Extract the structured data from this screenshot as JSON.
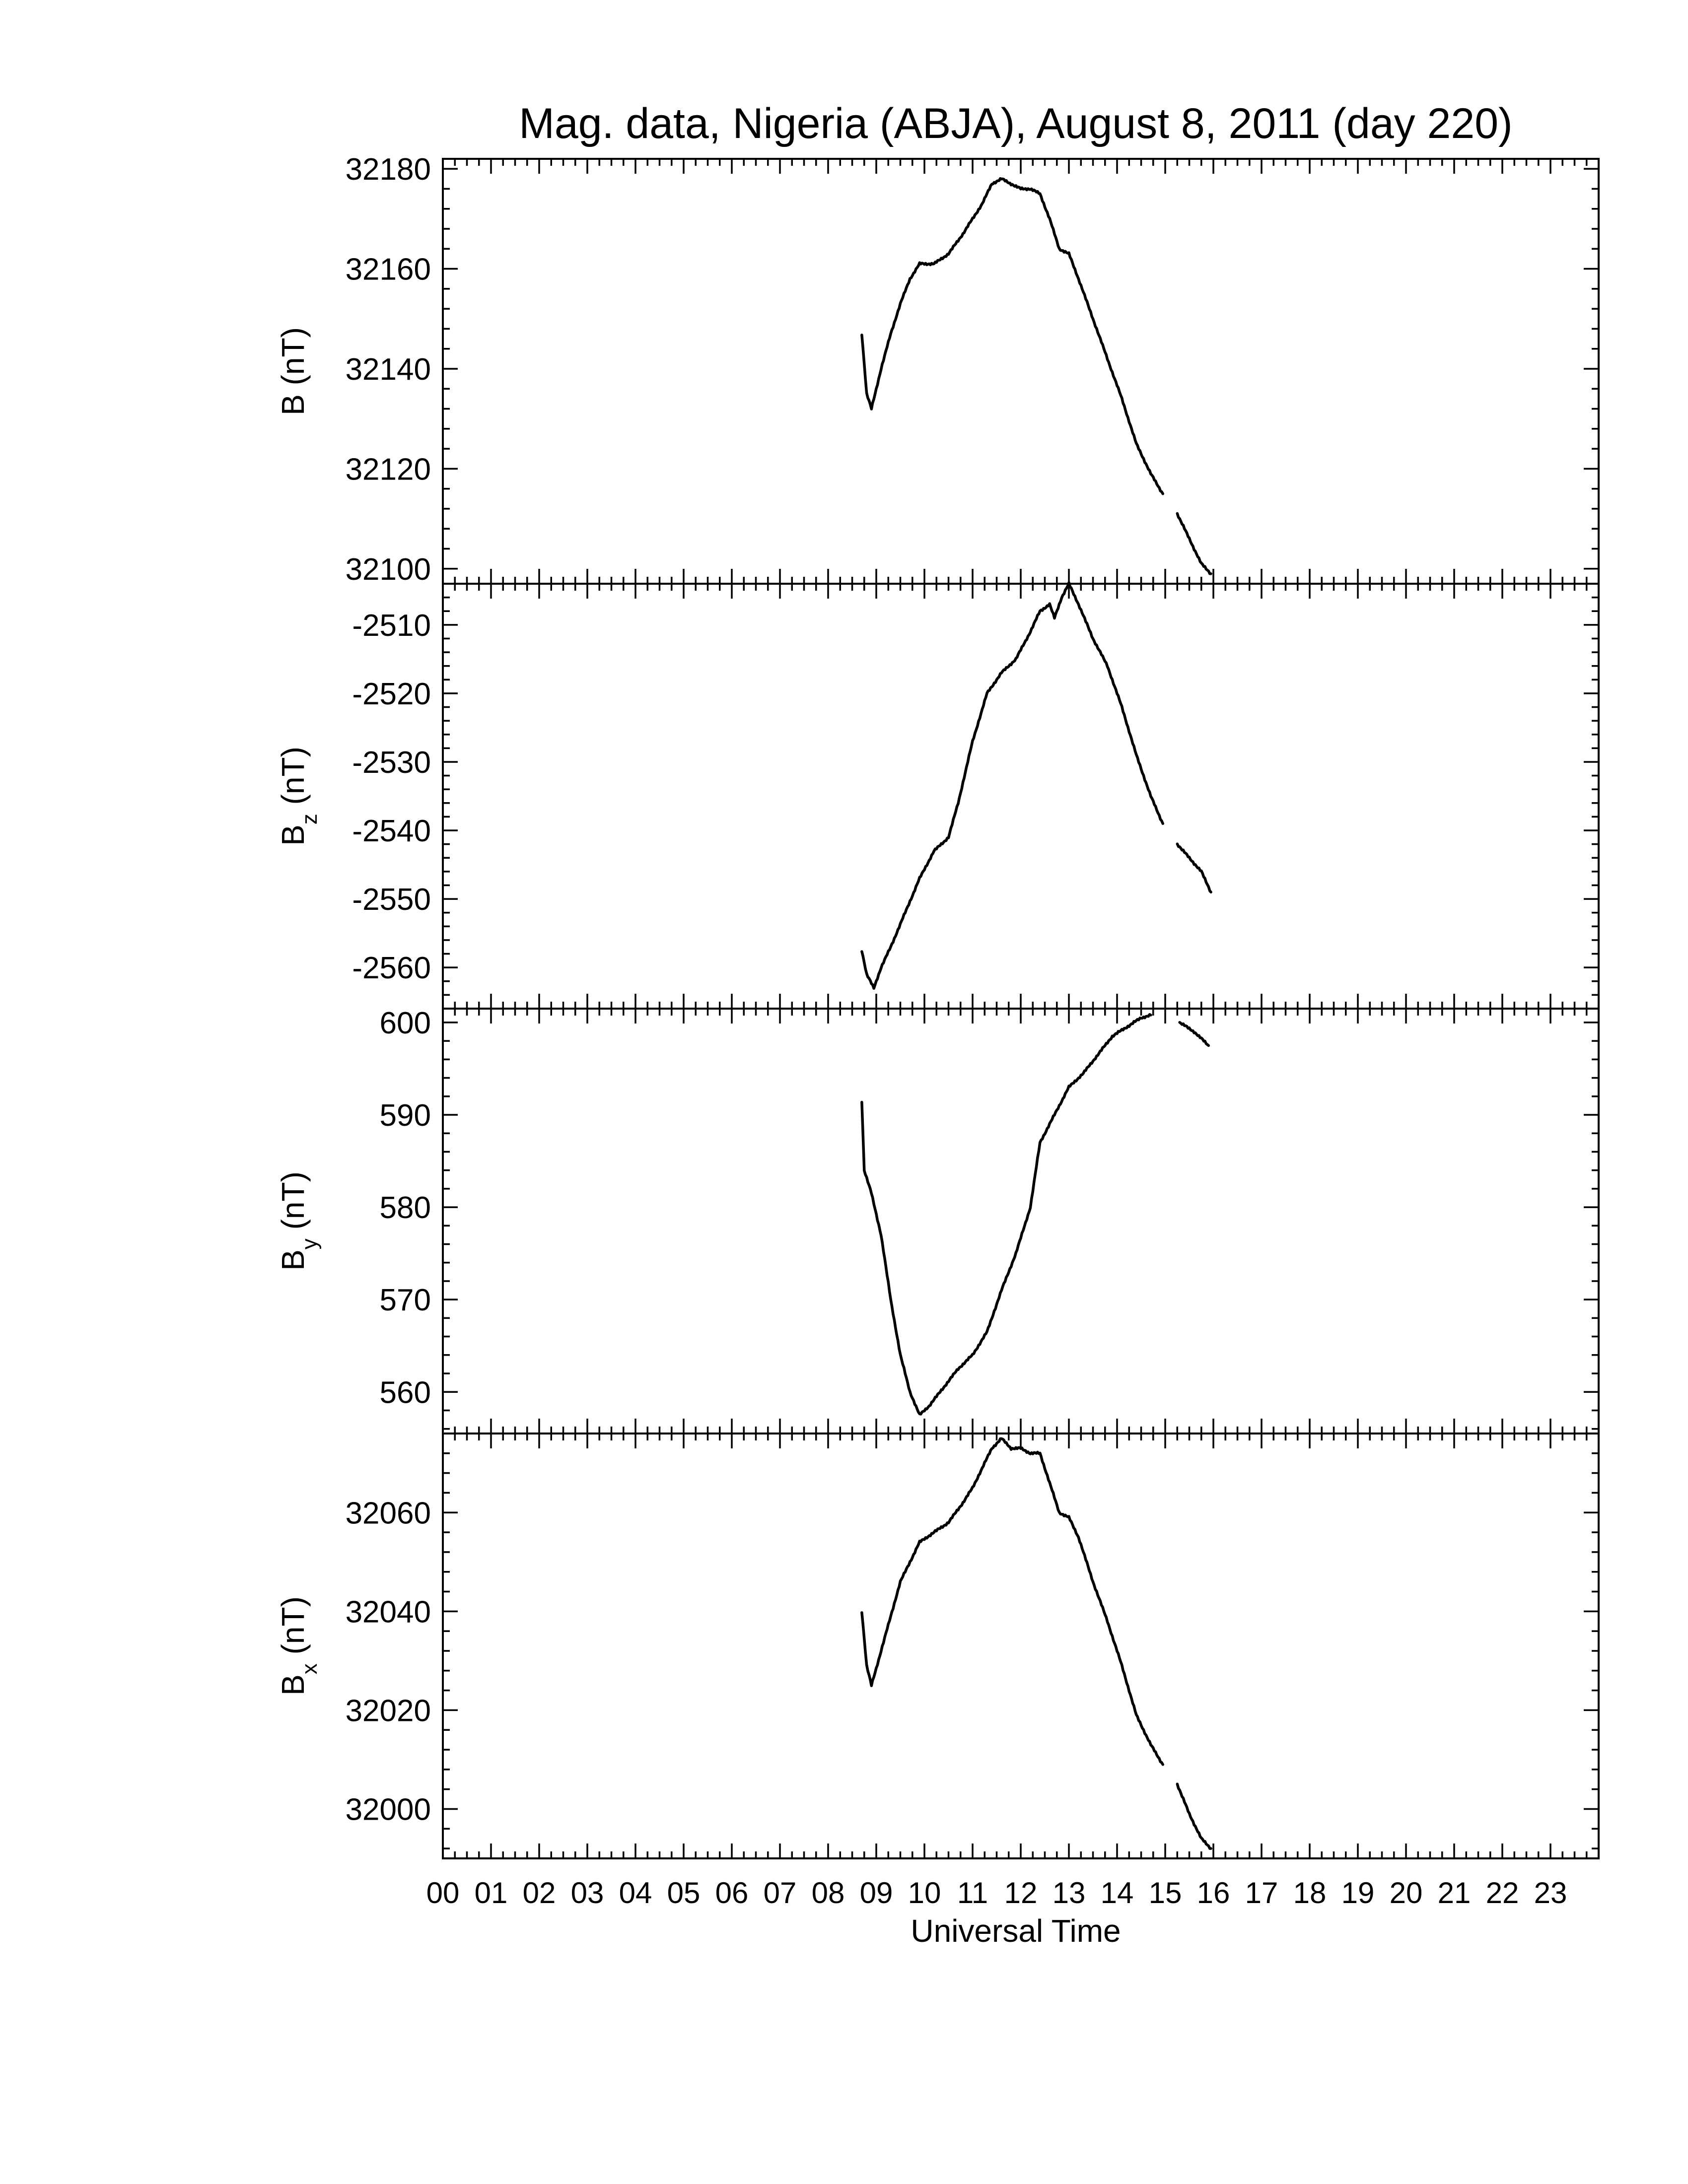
{
  "chart_data": {
    "type": "line",
    "title": "Mag. data, Nigeria (ABJA), August 8, 2011 (day 220)",
    "xlabel": "Universal Time",
    "xlim": [
      0,
      24
    ],
    "x_tick_labels": [
      "00",
      "01",
      "02",
      "03",
      "04",
      "05",
      "06",
      "07",
      "08",
      "09",
      "10",
      "11",
      "12",
      "13",
      "14",
      "15",
      "16",
      "17",
      "18",
      "19",
      "20",
      "21",
      "22",
      "23"
    ],
    "panels": [
      {
        "id": "B",
        "ylabel": "B",
        "ylabel_sub": "",
        "ylabel_unit": "(nT)",
        "ylim": [
          32097,
          32182
        ],
        "yticks": [
          32100,
          32120,
          32140,
          32160,
          32180
        ],
        "segments": [
          [
            [
              8.7,
              32147
            ],
            [
              8.8,
              32135
            ],
            [
              8.9,
              32132
            ],
            [
              9.1,
              32140
            ],
            [
              9.3,
              32147
            ],
            [
              9.5,
              32153
            ],
            [
              9.7,
              32158
            ],
            [
              9.9,
              32161
            ],
            [
              10.2,
              32161
            ],
            [
              10.5,
              32163
            ],
            [
              10.8,
              32167
            ],
            [
              11.0,
              32170
            ],
            [
              11.2,
              32173
            ],
            [
              11.4,
              32177
            ],
            [
              11.6,
              32178
            ],
            [
              11.8,
              32177
            ],
            [
              12.0,
              32176
            ],
            [
              12.2,
              32176
            ],
            [
              12.4,
              32175
            ],
            [
              12.6,
              32170
            ],
            [
              12.8,
              32164
            ],
            [
              13.0,
              32163
            ],
            [
              13.2,
              32158
            ],
            [
              13.5,
              32150
            ],
            [
              13.8,
              32142
            ],
            [
              14.1,
              32134
            ],
            [
              14.4,
              32125
            ],
            [
              14.7,
              32119
            ],
            [
              14.95,
              32115
            ]
          ],
          [
            [
              15.25,
              32111
            ],
            [
              15.5,
              32106
            ],
            [
              15.75,
              32101
            ],
            [
              15.95,
              32099
            ]
          ]
        ]
      },
      {
        "id": "Bz",
        "ylabel": "B",
        "ylabel_sub": "z",
        "ylabel_unit": "(nT)",
        "ylim": [
          -2566,
          -2504
        ],
        "yticks": [
          -2510,
          -2520,
          -2530,
          -2540,
          -2550,
          -2560
        ],
        "segments": [
          [
            [
              8.7,
              -2557.5
            ],
            [
              8.8,
              -2561
            ],
            [
              8.95,
              -2563
            ],
            [
              9.1,
              -2560
            ],
            [
              9.3,
              -2557
            ],
            [
              9.6,
              -2552
            ],
            [
              9.9,
              -2547
            ],
            [
              10.2,
              -2543
            ],
            [
              10.5,
              -2541
            ],
            [
              10.7,
              -2536
            ],
            [
              11.0,
              -2527
            ],
            [
              11.3,
              -2520
            ],
            [
              11.6,
              -2517
            ],
            [
              11.9,
              -2515
            ],
            [
              12.2,
              -2511
            ],
            [
              12.4,
              -2508
            ],
            [
              12.6,
              -2507
            ],
            [
              12.7,
              -2509
            ],
            [
              12.85,
              -2506
            ],
            [
              13.0,
              -2504
            ],
            [
              13.2,
              -2507
            ],
            [
              13.5,
              -2512
            ],
            [
              13.8,
              -2516
            ],
            [
              14.1,
              -2522
            ],
            [
              14.4,
              -2529
            ],
            [
              14.7,
              -2535
            ],
            [
              14.95,
              -2539
            ]
          ],
          [
            [
              15.25,
              -2542
            ],
            [
              15.5,
              -2544
            ],
            [
              15.75,
              -2546
            ],
            [
              15.95,
              -2549
            ]
          ]
        ]
      },
      {
        "id": "By",
        "ylabel": "B",
        "ylabel_sub": "y",
        "ylabel_unit": "(nT)",
        "ylim": [
          555.5,
          601.5
        ],
        "yticks": [
          560,
          570,
          580,
          590,
          600
        ],
        "segments": [
          [
            [
              8.7,
              591.5
            ],
            [
              8.75,
              584
            ],
            [
              8.9,
              581.5
            ],
            [
              9.1,
              577
            ],
            [
              9.3,
              570
            ],
            [
              9.5,
              564
            ],
            [
              9.7,
              560
            ],
            [
              9.9,
              557.5
            ],
            [
              10.1,
              558.5
            ],
            [
              10.4,
              560.5
            ],
            [
              10.7,
              562.5
            ],
            [
              11.0,
              564
            ],
            [
              11.3,
              566.5
            ],
            [
              11.6,
              571
            ],
            [
              11.9,
              575
            ],
            [
              12.2,
              580
            ],
            [
              12.4,
              587
            ],
            [
              12.6,
              589
            ],
            [
              12.8,
              591
            ],
            [
              13.0,
              593
            ],
            [
              13.3,
              594.5
            ],
            [
              13.6,
              596.5
            ],
            [
              13.9,
              598.5
            ],
            [
              14.2,
              599.5
            ],
            [
              14.5,
              600.5
            ],
            [
              14.7,
              600.8
            ]
          ],
          [
            [
              15.3,
              600
            ],
            [
              15.6,
              599
            ],
            [
              15.9,
              597.5
            ]
          ]
        ]
      },
      {
        "id": "Bx",
        "ylabel": "B",
        "ylabel_sub": "x",
        "ylabel_unit": "(nT)",
        "ylim": [
          31990,
          32076
        ],
        "yticks": [
          32000,
          32020,
          32040,
          32060
        ],
        "segments": [
          [
            [
              8.7,
              32040
            ],
            [
              8.8,
              32029
            ],
            [
              8.9,
              32025
            ],
            [
              9.1,
              32032
            ],
            [
              9.3,
              32039
            ],
            [
              9.5,
              32046
            ],
            [
              9.7,
              32050
            ],
            [
              9.9,
              32054
            ],
            [
              10.2,
              32056
            ],
            [
              10.5,
              32058
            ],
            [
              10.8,
              32062
            ],
            [
              11.0,
              32065
            ],
            [
              11.2,
              32069
            ],
            [
              11.4,
              32073
            ],
            [
              11.6,
              32075
            ],
            [
              11.8,
              32073
            ],
            [
              12.0,
              32073
            ],
            [
              12.2,
              32072
            ],
            [
              12.4,
              32072
            ],
            [
              12.6,
              32066
            ],
            [
              12.8,
              32060
            ],
            [
              13.0,
              32059
            ],
            [
              13.2,
              32055
            ],
            [
              13.5,
              32046
            ],
            [
              13.8,
              32038
            ],
            [
              14.1,
              32029
            ],
            [
              14.4,
              32019
            ],
            [
              14.7,
              32013
            ],
            [
              14.95,
              32009
            ]
          ],
          [
            [
              15.25,
              32005
            ],
            [
              15.5,
              31999
            ],
            [
              15.75,
              31994
            ],
            [
              15.95,
              31992
            ]
          ]
        ]
      }
    ]
  }
}
